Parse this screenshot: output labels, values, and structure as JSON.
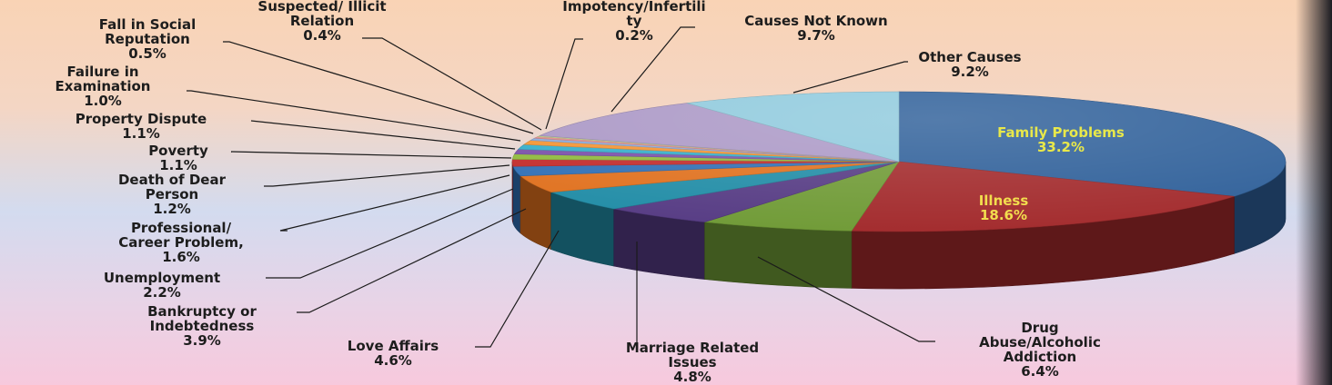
{
  "chart_data": {
    "type": "pie",
    "title": "",
    "slices": [
      {
        "label": "Family Problems",
        "value": 33.2,
        "value_label": "33.2%",
        "color": "#2e5f99"
      },
      {
        "label": "Illness",
        "value": 18.6,
        "value_label": "18.6%",
        "color": "#a2292b"
      },
      {
        "label": "Drug Abuse/Alcoholic Addiction",
        "value": 6.4,
        "value_label": "6.4%",
        "color": "#6f9a35"
      },
      {
        "label": "Marriage Related Issues",
        "value": 4.8,
        "value_label": "4.8%",
        "color": "#553a83"
      },
      {
        "label": "Love Affairs",
        "value": 4.6,
        "value_label": "4.6%",
        "color": "#208ca6"
      },
      {
        "label": "Bankruptcy or Indebtedness",
        "value": 3.9,
        "value_label": "3.9%",
        "color": "#e0701d"
      },
      {
        "label": "Unemployment",
        "value": 2.2,
        "value_label": "2.2%",
        "color": "#2f6fb5"
      },
      {
        "label": "Professional/ Career Problem,",
        "value": 1.6,
        "value_label": "1.6%",
        "color": "#c22a2a"
      },
      {
        "label": "Death of Dear Person",
        "value": 1.2,
        "value_label": "1.2%",
        "color": "#8fba3d"
      },
      {
        "label": "Poverty",
        "value": 1.1,
        "value_label": "1.1%",
        "color": "#7a4fa9"
      },
      {
        "label": "Property Dispute",
        "value": 1.1,
        "value_label": "1.1%",
        "color": "#34aeca"
      },
      {
        "label": "Failure in Examination",
        "value": 1.0,
        "value_label": "1.0%",
        "color": "#f39433"
      },
      {
        "label": "Fall in Social Reputation",
        "value": 0.5,
        "value_label": "0.5%",
        "color": "#8cabdc"
      },
      {
        "label": "Suspected/ Illicit Relation",
        "value": 0.4,
        "value_label": "0.4%",
        "color": "#e08c8a"
      },
      {
        "label": "Impotency/Infertility",
        "value": 0.2,
        "value_label": "0.2%",
        "color": "#c5d98f"
      },
      {
        "label": "Causes Not Known",
        "value": 9.7,
        "value_label": "9.7%",
        "color": "#ab98c6"
      },
      {
        "label": "Other Causes",
        "value": 9.2,
        "value_label": "9.2%",
        "color": "#8fcadd"
      }
    ],
    "legend": "none"
  }
}
